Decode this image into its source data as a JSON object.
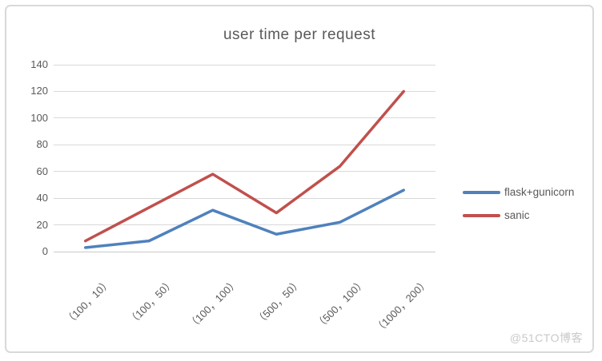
{
  "chart_data": {
    "type": "line",
    "title": "user time per request",
    "categories": [
      "（100，10）",
      "（100，50）",
      "（100，100）",
      "（500，50）",
      "（500，100）",
      "（1000，200）"
    ],
    "series": [
      {
        "name": "flask+gunicorn",
        "color": "#4f81bd",
        "values": [
          3,
          8,
          31,
          13,
          22,
          46
        ]
      },
      {
        "name": "sanic",
        "color": "#c0504d",
        "values": [
          8,
          33,
          58,
          29,
          64,
          120
        ]
      }
    ],
    "ylim": [
      0,
      140
    ],
    "yticks": [
      0,
      20,
      40,
      60,
      80,
      100,
      120,
      140
    ],
    "grid": true,
    "legend_position": "right",
    "x_label_rotation_deg": -45
  },
  "watermark": {
    "text": "@51CTO博客"
  },
  "colors": {
    "grid": "#d9d9d9",
    "axis_text": "#595959",
    "frame_border": "#d9d9d9",
    "background": "#ffffff",
    "series_blue": "#4f81bd",
    "series_red": "#c0504d"
  }
}
